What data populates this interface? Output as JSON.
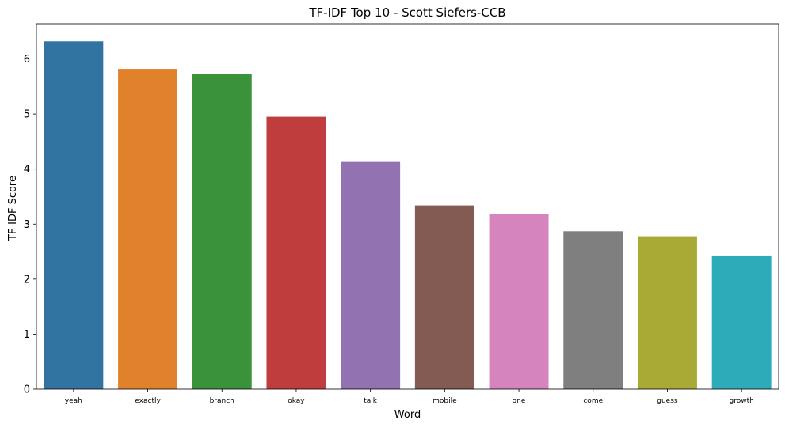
{
  "chart_data": {
    "type": "bar",
    "title": "TF-IDF Top 10 - Scott Siefers-CCB",
    "xlabel": "Word",
    "ylabel": "TF-IDF Score",
    "categories": [
      "yeah",
      "exactly",
      "branch",
      "okay",
      "talk",
      "mobile",
      "one",
      "come",
      "guess",
      "growth"
    ],
    "values": [
      6.32,
      5.82,
      5.73,
      4.95,
      4.13,
      3.34,
      3.18,
      2.87,
      2.78,
      2.43
    ],
    "colors": [
      "#3274a1",
      "#e1812c",
      "#3a923a",
      "#c03d3e",
      "#9372b2",
      "#845b53",
      "#d684bd",
      "#7f7f7f",
      "#a9aa35",
      "#2eabb8"
    ],
    "ylim": [
      0,
      6.64
    ],
    "yticks": [
      0,
      1,
      2,
      3,
      4,
      5,
      6
    ],
    "grid": false,
    "legend": "none"
  }
}
